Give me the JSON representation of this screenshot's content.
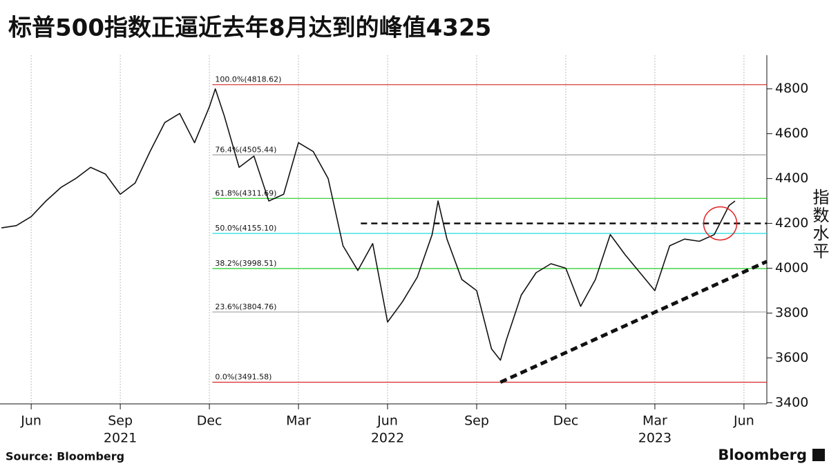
{
  "chart_data": {
    "type": "line",
    "title": "标普500指数正逼近去年8月达到的峰值4325",
    "y_axis_label": "指数水平",
    "source": "Source: Bloomberg",
    "brand": "Bloomberg",
    "series": [
      {
        "color": "#111111",
        "x": [
          -1,
          -0.5,
          0,
          0.5,
          1,
          1.5,
          2,
          2.5,
          3,
          3.5,
          4,
          4.5,
          5,
          5.5,
          6,
          6.2,
          6.5,
          7,
          7.5,
          8,
          8.5,
          9,
          9.5,
          10,
          10.5,
          11,
          11.5,
          12,
          12.5,
          13,
          13.5,
          13.7,
          14,
          14.5,
          15,
          15.5,
          15.8,
          16,
          16.5,
          17,
          17.5,
          18,
          18.5,
          19,
          19.5,
          20,
          20.5,
          21,
          21.5,
          22,
          22.5,
          23,
          23.5,
          23.7
        ],
        "values": [
          4180,
          4190,
          4230,
          4300,
          4360,
          4400,
          4450,
          4420,
          4330,
          4380,
          4520,
          4650,
          4690,
          4560,
          4720,
          4800,
          4680,
          4450,
          4500,
          4300,
          4330,
          4560,
          4520,
          4400,
          4100,
          3990,
          4110,
          3760,
          3850,
          3960,
          4150,
          4300,
          4130,
          3950,
          3900,
          3640,
          3590,
          3680,
          3880,
          3980,
          4020,
          4000,
          3830,
          3950,
          4150,
          4060,
          3980,
          3900,
          4100,
          4130,
          4120,
          4150,
          4280,
          4300
        ]
      }
    ],
    "xlim": [
      -1.05,
      24.77
    ],
    "ylim": [
      3395,
      4950
    ],
    "xticks": [
      {
        "value": 0,
        "label": "Jun"
      },
      {
        "value": 3,
        "label": "Sep"
      },
      {
        "value": 6,
        "label": "Dec"
      },
      {
        "value": 9,
        "label": "Mar"
      },
      {
        "value": 12,
        "label": "Jun"
      },
      {
        "value": 15,
        "label": "Sep"
      },
      {
        "value": 18,
        "label": "Dec"
      },
      {
        "value": 21,
        "label": "Mar"
      },
      {
        "value": 24,
        "label": "Jun"
      }
    ],
    "year_labels": [
      {
        "x": 3,
        "text": "2021"
      },
      {
        "x": 12,
        "text": "2022"
      },
      {
        "x": 21,
        "text": "2023"
      }
    ],
    "yticks": [
      3400,
      3600,
      3800,
      4000,
      4200,
      4400,
      4600,
      4800
    ],
    "grid": true,
    "fib_start_x": 6.1,
    "fib_levels": [
      {
        "label": "100.0%(4818.62)",
        "value": 4818.62,
        "color": "#d62728"
      },
      {
        "label": "76.4%(4505.44)",
        "value": 4505.44,
        "color": "#a0a0a0"
      },
      {
        "label": "61.8%(4311.69)",
        "value": 4311.69,
        "color": "#22cc22"
      },
      {
        "label": "50.0%(4155.10)",
        "value": 4155.1,
        "color": "#22dddd"
      },
      {
        "label": "38.2%(3998.51)",
        "value": 3998.51,
        "color": "#22cc22"
      },
      {
        "label": "23.6%(3804.76)",
        "value": 3804.76,
        "color": "#a0a0a0"
      },
      {
        "label": "0.0%(3491.58)",
        "value": 3491.58,
        "color": "#d62728"
      }
    ],
    "resistance": {
      "x": [
        11.1,
        24.77
      ],
      "y": 4200
    },
    "trendline": {
      "x": [
        15.8,
        24.77
      ],
      "y": [
        3491.58,
        4030
      ]
    },
    "highlight": {
      "x": 23.2,
      "y": 4200
    }
  }
}
